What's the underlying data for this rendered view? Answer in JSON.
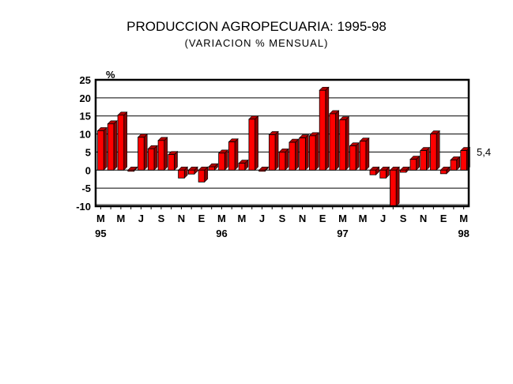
{
  "chart_data": {
    "type": "bar",
    "title": "PRODUCCION AGROPECUARIA: 1995-98",
    "subtitle": "(VARIACION % MENSUAL)",
    "ylabel": "%",
    "ylim": [
      -10,
      25
    ],
    "yticks": [
      25,
      20,
      15,
      10,
      5,
      0,
      -5,
      -10
    ],
    "grid": true,
    "bar_color": "#ff0000",
    "categories": [
      "Mar-95",
      "Apr-95",
      "May-95",
      "Jun-95",
      "Jul-95",
      "Aug-95",
      "Sep-95",
      "Oct-95",
      "Nov-95",
      "Dec-95",
      "Jan-96",
      "Feb-96",
      "Mar-96",
      "Apr-96",
      "May-96",
      "Jun-96",
      "Jul-96",
      "Aug-96",
      "Sep-96",
      "Oct-96",
      "Nov-96",
      "Dec-96",
      "Jan-97",
      "Feb-97",
      "Mar-97",
      "Apr-97",
      "May-97",
      "Jun-97",
      "Jul-97",
      "Aug-97",
      "Sep-97",
      "Oct-97",
      "Nov-97",
      "Dec-97",
      "Jan-98",
      "Feb-98",
      "Mar-98"
    ],
    "values": [
      10.9,
      12.8,
      15.2,
      -0.3,
      9.1,
      5.9,
      8.2,
      4.3,
      -2.2,
      -1.1,
      -3.3,
      0.9,
      4.7,
      7.8,
      1.9,
      14.1,
      -0.3,
      9.8,
      5.0,
      7.7,
      8.9,
      9.5,
      22.1,
      15.6,
      13.9,
      6.7,
      8.0,
      -1.3,
      -2.2,
      -10,
      -0.6,
      3.0,
      5.4,
      10.0,
      -1.0,
      2.8,
      5.4
    ],
    "x_tick_labels": [
      "M",
      "M",
      "J",
      "S",
      "N",
      "E",
      "M",
      "M",
      "J",
      "S",
      "N",
      "E",
      "M",
      "M",
      "J",
      "S",
      "N",
      "E",
      "M"
    ],
    "year_labels": [
      {
        "index": 0,
        "label": "95"
      },
      {
        "index": 12,
        "label": "96"
      },
      {
        "index": 24,
        "label": "97"
      },
      {
        "index": 36,
        "label": "98"
      }
    ],
    "annotation": "5,4"
  }
}
